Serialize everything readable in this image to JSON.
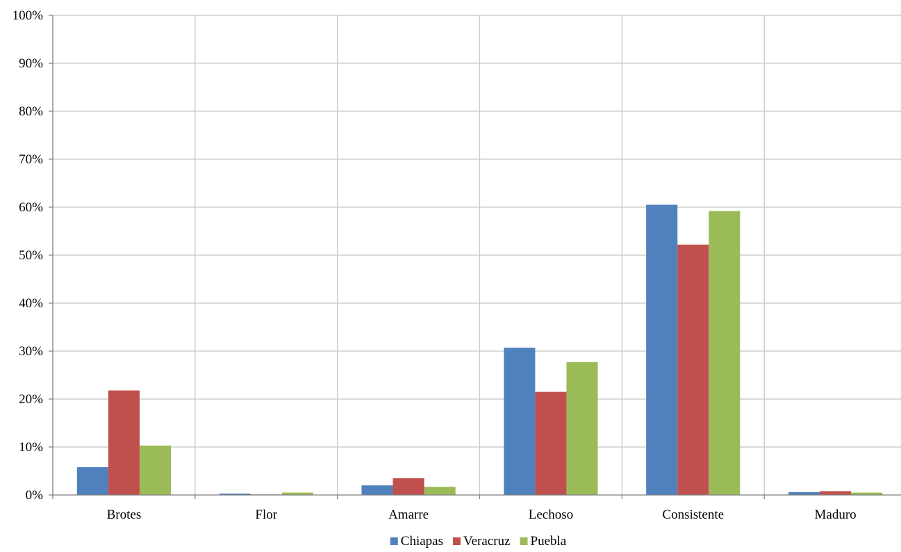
{
  "chart_data": {
    "type": "bar",
    "categories": [
      "Brotes",
      "Flor",
      "Amarre",
      "Lechoso",
      "Consistente",
      "Maduro"
    ],
    "series": [
      {
        "name": "Chiapas",
        "color": "#4F81BD",
        "values": [
          5.8,
          0.3,
          2.0,
          30.7,
          60.5,
          0.6
        ]
      },
      {
        "name": "Veracruz",
        "color": "#C0504D",
        "values": [
          21.8,
          0.1,
          3.5,
          21.5,
          52.2,
          0.8
        ]
      },
      {
        "name": "Puebla",
        "color": "#9BBB59",
        "values": [
          10.3,
          0.5,
          1.7,
          27.7,
          59.2,
          0.5
        ]
      }
    ],
    "ylim": [
      0,
      100
    ],
    "yticks": [
      0,
      10,
      20,
      30,
      40,
      50,
      60,
      70,
      80,
      90,
      100
    ],
    "ytick_labels": [
      "0%",
      "10%",
      "20%",
      "30%",
      "40%",
      "50%",
      "60%",
      "70%",
      "80%",
      "90%",
      "100%"
    ],
    "grid": true,
    "legend_position": "bottom"
  }
}
